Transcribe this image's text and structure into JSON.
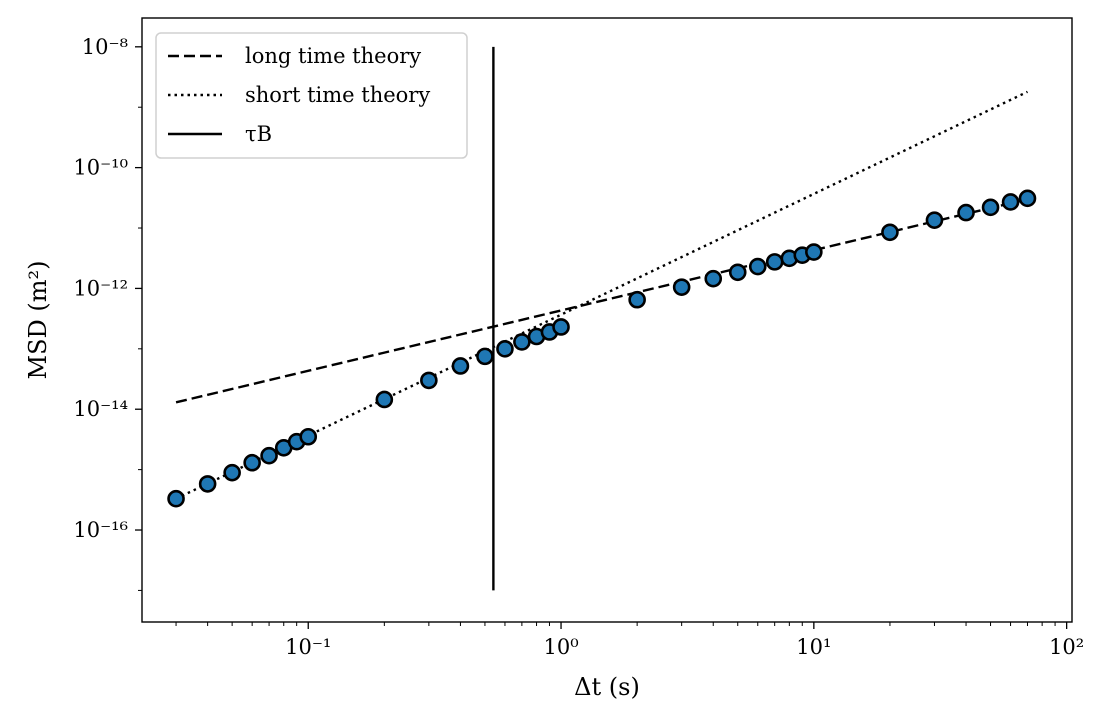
{
  "chart_data": {
    "type": "scatter",
    "xscale": "log",
    "yscale": "log",
    "xlabel": "Δt (s)",
    "ylabel": "MSD (m²)",
    "xlim": [
      0.022,
      105
    ],
    "ylim": [
      3e-18,
      3e-08
    ],
    "xticks": [
      {
        "value": 0.1,
        "label": "10⁻¹"
      },
      {
        "value": 1,
        "label": "10⁰"
      },
      {
        "value": 10,
        "label": "10¹"
      },
      {
        "value": 100,
        "label": "10²"
      }
    ],
    "yticks": [
      {
        "value": 1e-16,
        "label": "10⁻¹⁶"
      },
      {
        "value": 1e-14,
        "label": "10⁻¹⁴"
      },
      {
        "value": 1e-12,
        "label": "10⁻¹²"
      },
      {
        "value": 1e-10,
        "label": "10⁻¹⁰"
      },
      {
        "value": 1e-08,
        "label": "10⁻⁸"
      }
    ],
    "grid": false,
    "legend_position": "top-left",
    "series": [
      {
        "name": "long time theory",
        "kind": "line",
        "style": "dashed",
        "color": "#000000",
        "x": [
          0.03,
          70
        ],
        "y": [
          1.3e-14,
          3e-11
        ]
      },
      {
        "name": "short time theory",
        "kind": "line",
        "style": "dotted",
        "color": "#000000",
        "x": [
          0.03,
          70
        ],
        "y": [
          3.3e-16,
          1.8e-09
        ]
      },
      {
        "name": "τB",
        "kind": "vline",
        "style": "solid",
        "color": "#000000",
        "x": 0.54,
        "y_range": [
          1e-17,
          1e-08
        ]
      },
      {
        "kind": "scatter",
        "marker_color": "#1f77b4",
        "edge_color": "#000000",
        "x": [
          0.03,
          0.04,
          0.05,
          0.06,
          0.07,
          0.08,
          0.09,
          0.1,
          0.2,
          0.3,
          0.4,
          0.5,
          0.6,
          0.7,
          0.8,
          0.9,
          1,
          2,
          3,
          4,
          5,
          6,
          7,
          8,
          9,
          10,
          20,
          30,
          40,
          50,
          60,
          70
        ],
        "y": [
          3.3e-16,
          5.8e-16,
          8.9e-16,
          1.3e-15,
          1.7e-15,
          2.3e-15,
          2.9e-15,
          3.5e-15,
          1.45e-14,
          3e-14,
          5.2e-14,
          7.5e-14,
          1e-13,
          1.3e-13,
          1.6e-13,
          1.9e-13,
          2.3e-13,
          6.5e-13,
          1.05e-12,
          1.45e-12,
          1.85e-12,
          2.3e-12,
          2.75e-12,
          3.15e-12,
          3.55e-12,
          4e-12,
          8.5e-12,
          1.35e-11,
          1.8e-11,
          2.2e-11,
          2.7e-11,
          3.1e-11
        ]
      }
    ]
  }
}
